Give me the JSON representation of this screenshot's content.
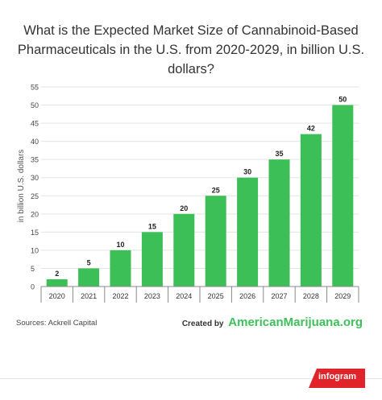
{
  "title_lines": [
    "What is the Expected Market Size of Cannabinoid-Based",
    "Pharmaceuticals in the U.S. from 2020-2029, in billion U.S. dollars?"
  ],
  "colors": {
    "bar": "#3dbf57",
    "grid": "#e3e3e3",
    "axis": "#888888",
    "brand": "#3fbf5a",
    "badge": "#e0242a"
  },
  "chart_data": {
    "type": "bar",
    "categories": [
      "2020",
      "2021",
      "2022",
      "2023",
      "2024",
      "2025",
      "2026",
      "2027",
      "2028",
      "2029"
    ],
    "values": [
      2,
      5,
      10,
      15,
      20,
      25,
      30,
      35,
      42,
      50
    ],
    "ylabel": "in billion U.S. dollars",
    "ylim": [
      0,
      55
    ],
    "yticks": [
      0,
      5,
      10,
      15,
      20,
      25,
      30,
      35,
      40,
      45,
      50,
      55
    ],
    "grid": true,
    "data_labels": true
  },
  "footer": {
    "source": "Sources: Ackrell Capital",
    "created_by": "Created by",
    "brand": "AmericanMarijuana.org",
    "badge": "infogram"
  }
}
